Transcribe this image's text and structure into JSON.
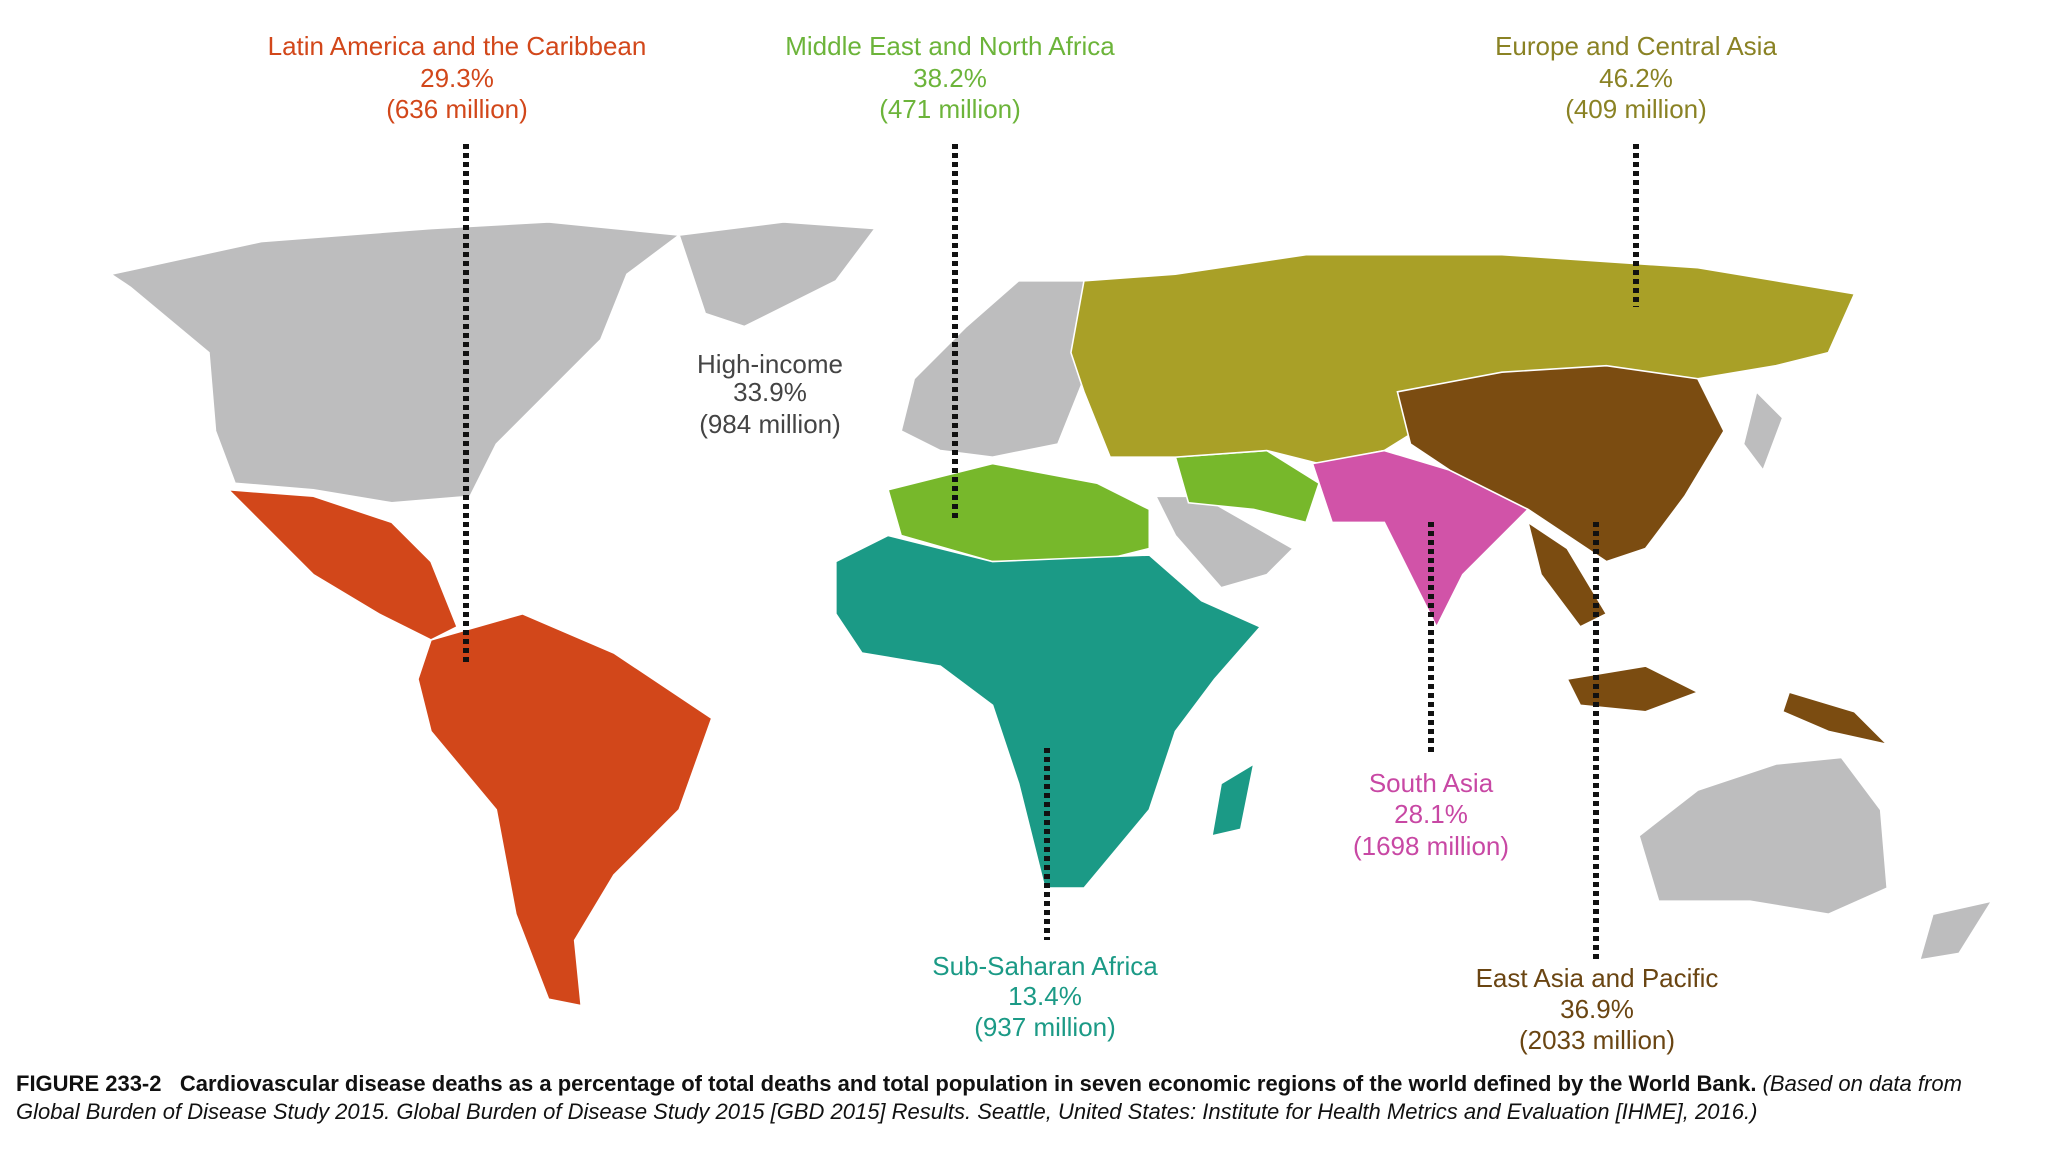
{
  "regions": [
    {
      "name": "Latin America and the Caribbean",
      "share": "29.3%",
      "population": "(636 million)"
    },
    {
      "name": "Middle East and North Africa",
      "share": "38.2%",
      "population": "(471 million)"
    },
    {
      "name": "Europe and Central Asia",
      "share": "46.2%",
      "population": "(409 million)"
    },
    {
      "name": "High-income",
      "share": "33.9%",
      "population": "(984 million)"
    },
    {
      "name": "South Asia",
      "share": "28.1%",
      "population": "(1698 million)"
    },
    {
      "name": "Sub-Saharan Africa",
      "share": "13.4%",
      "population": "(937 million)"
    },
    {
      "name": "East Asia and Pacific",
      "share": "36.9%",
      "population": "(2033 million)"
    }
  ],
  "caption": {
    "figure": "FIGURE 233-2",
    "title": "Cardiovascular disease deaths as a percentage of total deaths and total population in seven economic regions of the world defined by the World Bank.",
    "source": "(Based on data from Global Burden of Disease Study 2015. Global Burden of Disease Study 2015 [GBD 2015] Results. Seattle, United States: Institute for Health Metrics and Evaluation [IHME], 2016.)"
  }
}
